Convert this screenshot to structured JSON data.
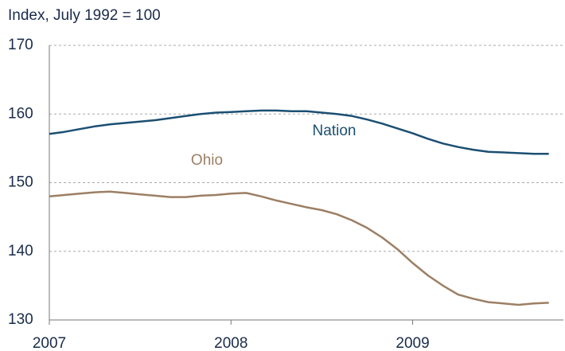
{
  "chart_data": {
    "type": "line",
    "title": "Index, July 1992 = 100",
    "x": [
      2007,
      2007.083,
      2007.167,
      2007.25,
      2007.333,
      2007.417,
      2007.5,
      2007.583,
      2007.667,
      2007.75,
      2007.833,
      2007.917,
      2008,
      2008.083,
      2008.167,
      2008.25,
      2008.333,
      2008.417,
      2008.5,
      2008.583,
      2008.667,
      2008.75,
      2008.833,
      2008.917,
      2009,
      2009.083,
      2009.167,
      2009.25,
      2009.333,
      2009.417,
      2009.5,
      2009.583,
      2009.667,
      2009.75
    ],
    "series": [
      {
        "name": "Nation",
        "color": "#1b4f72",
        "values": [
          157.1,
          157.4,
          157.8,
          158.2,
          158.5,
          158.7,
          158.9,
          159.1,
          159.4,
          159.7,
          160.0,
          160.2,
          160.3,
          160.4,
          160.5,
          160.5,
          160.4,
          160.4,
          160.2,
          160.0,
          159.7,
          159.2,
          158.6,
          157.9,
          157.2,
          156.4,
          155.7,
          155.2,
          154.8,
          154.5,
          154.4,
          154.3,
          154.2,
          154.2
        ]
      },
      {
        "name": "Ohio",
        "color": "#9c7f64",
        "values": [
          148.0,
          148.2,
          148.4,
          148.6,
          148.7,
          148.5,
          148.3,
          148.1,
          147.9,
          147.9,
          148.1,
          148.2,
          148.4,
          148.5,
          148.0,
          147.4,
          146.9,
          146.4,
          146.0,
          145.4,
          144.5,
          143.4,
          142.0,
          140.3,
          138.3,
          136.5,
          135.0,
          133.7,
          133.1,
          132.6,
          132.4,
          132.2,
          132.4,
          132.5
        ]
      }
    ],
    "xlim": [
      2007,
      2009.83
    ],
    "xticks": [
      2007,
      2008,
      2009
    ],
    "ylim": [
      130,
      170
    ],
    "yticks": [
      130,
      140,
      150,
      160,
      170
    ],
    "grid": true
  }
}
